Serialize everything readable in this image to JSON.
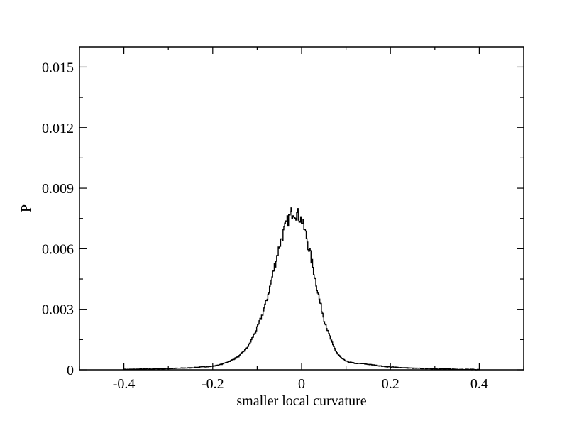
{
  "chart_data": {
    "type": "line",
    "title": "",
    "xlabel": "smaller local curvature",
    "ylabel": "P",
    "xlim": [
      -0.5,
      0.5
    ],
    "ylim": [
      0,
      0.016
    ],
    "x_ticks": [
      -0.4,
      -0.2,
      0,
      0.2,
      0.4
    ],
    "x_tick_labels": [
      "-0.4",
      "-0.2",
      "0",
      "0.2",
      "0.4"
    ],
    "y_ticks": [
      0,
      0.003,
      0.006,
      0.009,
      0.012,
      0.015
    ],
    "y_tick_labels": [
      "0",
      "0.003",
      "0.006",
      "0.009",
      "0.012",
      "0.015"
    ],
    "x_minor_step": 0.1,
    "y_minor_step": 0.0015,
    "grid": false,
    "legend": "none",
    "line_color": "#000000",
    "series": [
      {
        "x": [
          -0.4,
          -0.35,
          -0.3,
          -0.25,
          -0.2,
          -0.18,
          -0.16,
          -0.14,
          -0.12,
          -0.1,
          -0.09,
          -0.08,
          -0.07,
          -0.06,
          -0.05,
          -0.04,
          -0.03,
          -0.02,
          -0.01,
          0.0,
          0.01,
          0.02,
          0.03,
          0.04,
          0.05,
          0.06,
          0.07,
          0.08,
          0.09,
          0.1,
          0.12,
          0.14,
          0.16,
          0.18,
          0.2,
          0.25,
          0.3,
          0.35,
          0.4
        ],
        "y": [
          2e-05,
          4e-05,
          6e-05,
          0.0001,
          0.00018,
          0.00028,
          0.00045,
          0.0007,
          0.0012,
          0.0021,
          0.0027,
          0.0034,
          0.0043,
          0.0053,
          0.0062,
          0.0069,
          0.0075,
          0.0079,
          0.0077,
          0.0074,
          0.0066,
          0.0056,
          0.0045,
          0.0034,
          0.0025,
          0.0018,
          0.0012,
          0.0008,
          0.00055,
          0.00042,
          0.00032,
          0.0003,
          0.00024,
          0.00018,
          0.00014,
          8e-05,
          5e-05,
          3e-05,
          1e-05
        ]
      }
    ]
  }
}
